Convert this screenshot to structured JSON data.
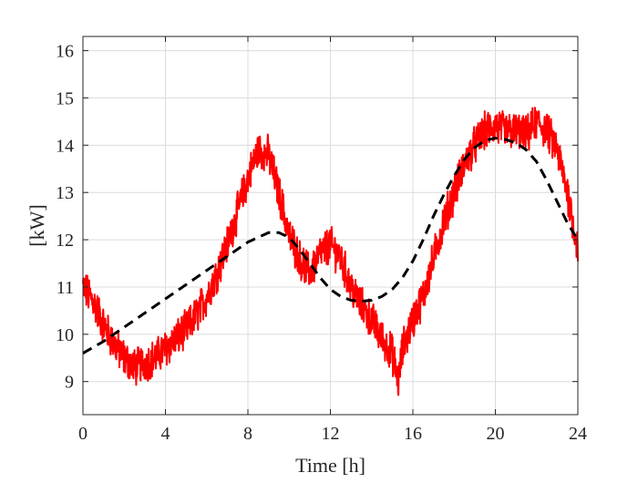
{
  "chart_data": {
    "type": "line",
    "title": "",
    "xlabel": "Time [h]",
    "ylabel": "[kW]",
    "xlim": [
      0,
      24
    ],
    "ylim": [
      8.3,
      16.3
    ],
    "xticks": [
      0,
      4,
      8,
      12,
      16,
      20,
      24
    ],
    "yticks": [
      9,
      10,
      11,
      12,
      13,
      14,
      15,
      16
    ],
    "grid": true,
    "legend": "none",
    "series": [
      {
        "color": "#ff0000",
        "style": "solid",
        "noise_amplitude": 0.35,
        "x": [
          0,
          0.5,
          1,
          1.5,
          2,
          2.5,
          3,
          3.5,
          4,
          4.5,
          5,
          5.5,
          6,
          6.5,
          7,
          7.5,
          8,
          8.5,
          9,
          9.5,
          10,
          10.5,
          11,
          11.5,
          12,
          12.5,
          13,
          13.5,
          14,
          14.5,
          15,
          15.3,
          15.5,
          16,
          16.5,
          17,
          17.5,
          18,
          18.5,
          19,
          19.5,
          20,
          20.5,
          21,
          21.5,
          22,
          22.5,
          23,
          23.5,
          24
        ],
        "y": [
          11.0,
          10.7,
          10.2,
          9.8,
          9.5,
          9.3,
          9.4,
          9.5,
          9.7,
          9.9,
          10.1,
          10.4,
          10.8,
          11.3,
          11.9,
          12.6,
          13.3,
          13.9,
          13.8,
          13.0,
          12.1,
          11.6,
          11.3,
          11.7,
          11.9,
          11.6,
          11.0,
          10.6,
          10.3,
          9.9,
          9.6,
          9.0,
          9.7,
          10.3,
          10.8,
          11.6,
          12.4,
          13.0,
          13.6,
          14.0,
          14.3,
          14.4,
          14.3,
          14.3,
          14.2,
          14.5,
          14.3,
          13.9,
          13.0,
          11.8
        ]
      },
      {
        "color": "#000000",
        "style": "dashed",
        "x": [
          0,
          1,
          2,
          3,
          4,
          5,
          6,
          7,
          8,
          9,
          9.5,
          10,
          10.5,
          11,
          11.5,
          12,
          12.5,
          13,
          13.5,
          14,
          14.5,
          15,
          15.5,
          16,
          16.5,
          17,
          17.5,
          18,
          18.5,
          19,
          19.5,
          20,
          20.5,
          21,
          21.5,
          22,
          22.5,
          23,
          23.5,
          24
        ],
        "y": [
          9.6,
          9.85,
          10.15,
          10.45,
          10.75,
          11.05,
          11.35,
          11.65,
          11.95,
          12.15,
          12.15,
          12.05,
          11.8,
          11.5,
          11.2,
          10.95,
          10.8,
          10.72,
          10.7,
          10.72,
          10.8,
          10.95,
          11.2,
          11.55,
          12.0,
          12.5,
          12.95,
          13.35,
          13.7,
          13.95,
          14.1,
          14.15,
          14.12,
          14.05,
          13.9,
          13.65,
          13.25,
          12.8,
          12.35,
          12.0
        ]
      }
    ]
  }
}
